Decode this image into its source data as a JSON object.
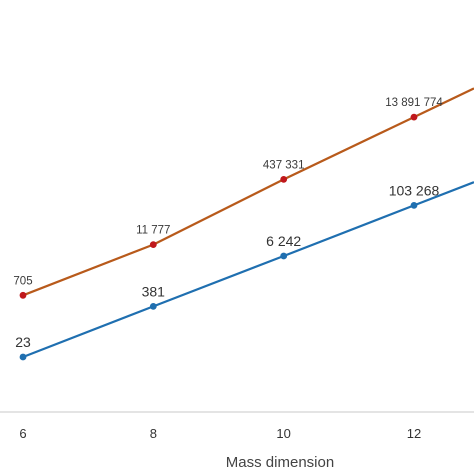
{
  "chart_data": {
    "type": "line",
    "xlabel": "Mass dimension",
    "ylabel": "",
    "x": [
      6,
      8,
      10,
      12
    ],
    "x_ticks": [
      "6",
      "8",
      "10",
      "12"
    ],
    "xlim": [
      5.4,
      12.9
    ],
    "y_scale": "log",
    "grid": false,
    "legend": "none",
    "series": [
      {
        "color": "#b85a1b",
        "marker_color": "#c0181c",
        "values": [
          705,
          11777,
          437331,
          13891774
        ],
        "labels": [
          "705",
          "11 777",
          "437 331",
          "13 891 774"
        ]
      },
      {
        "color": "#1f6fb0",
        "marker_color": "#1f6fb0",
        "values": [
          23,
          381,
          6242,
          103268
        ],
        "labels": [
          "23",
          "381",
          "6 242",
          "103 268"
        ]
      }
    ]
  }
}
